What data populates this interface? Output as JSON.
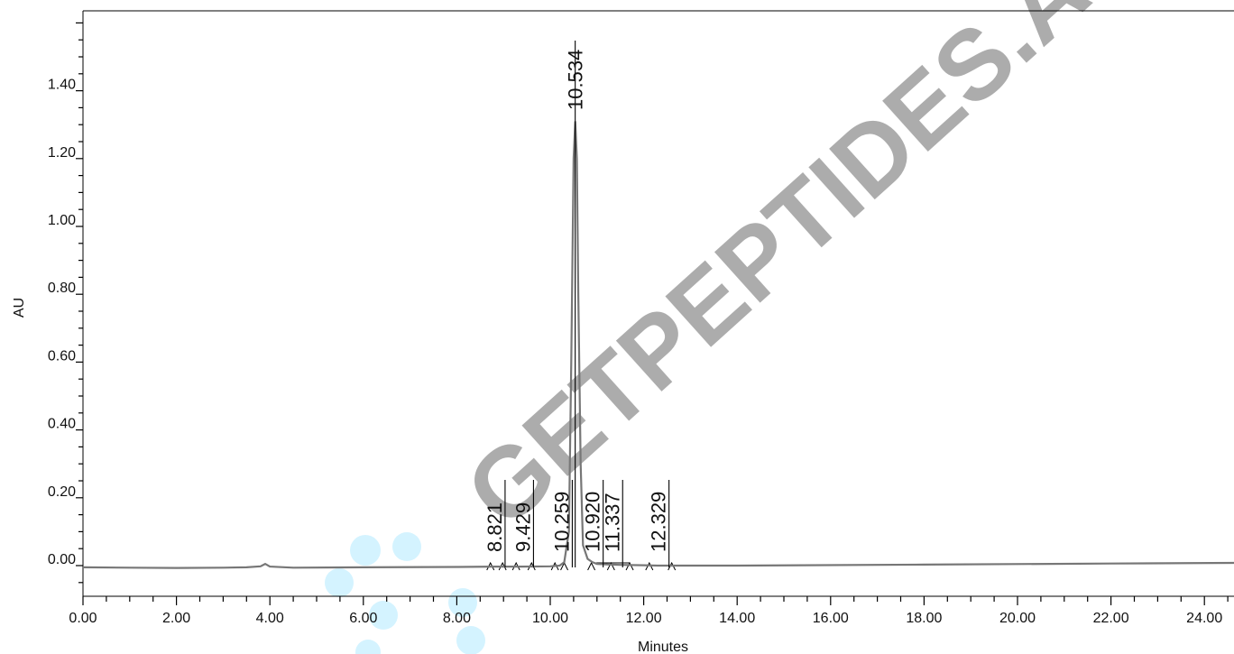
{
  "chart_data": {
    "type": "line",
    "xlabel": "Minutes",
    "ylabel": "AU",
    "xlim": [
      0,
      25.5
    ],
    "ylim": [
      -0.09,
      1.64
    ],
    "x_ticks": [
      "0.00",
      "2.00",
      "4.00",
      "6.00",
      "8.00",
      "10.00",
      "12.00",
      "14.00",
      "16.00",
      "18.00",
      "20.00",
      "22.00",
      "24.00"
    ],
    "x_tick_values": [
      0,
      2,
      4,
      6,
      8,
      10,
      12,
      14,
      16,
      18,
      20,
      22,
      24
    ],
    "y_ticks": [
      "0.00",
      "0.20",
      "0.40",
      "0.60",
      "0.80",
      "1.00",
      "1.20",
      "1.40"
    ],
    "y_tick_values": [
      0,
      0.2,
      0.4,
      0.6,
      0.8,
      1.0,
      1.2,
      1.4
    ],
    "grid": false,
    "series": [
      {
        "x": [
          0,
          1,
          2,
          3,
          3.5,
          3.8,
          3.9,
          4.0,
          4.5,
          6,
          8,
          8.8,
          9.4,
          10.0,
          10.2,
          10.3,
          10.4,
          10.45,
          10.5,
          10.534,
          10.57,
          10.6,
          10.65,
          10.7,
          10.8,
          10.9,
          11.0,
          11.3,
          11.5,
          12,
          12.3,
          12.6,
          14,
          18,
          22,
          25.5
        ],
        "y": [
          -0.005,
          -0.006,
          -0.007,
          -0.006,
          -0.005,
          -0.002,
          0.005,
          -0.003,
          -0.006,
          -0.005,
          -0.004,
          -0.003,
          -0.003,
          -0.002,
          0.0,
          0.01,
          0.1,
          0.6,
          1.2,
          1.31,
          1.2,
          0.8,
          0.3,
          0.06,
          0.02,
          0.01,
          0.005,
          0.003,
          0.002,
          0.001,
          0.0,
          0.0,
          0.0,
          0.003,
          0.006,
          0.008
        ]
      }
    ],
    "peaks": [
      {
        "rt": 8.821,
        "label": "8.821"
      },
      {
        "rt": 9.429,
        "label": "9.429"
      },
      {
        "rt": 10.259,
        "label": "10.259"
      },
      {
        "rt": 10.534,
        "label": "10.534"
      },
      {
        "rt": 10.92,
        "label": "10.920"
      },
      {
        "rt": 11.337,
        "label": "11.337"
      },
      {
        "rt": 12.329,
        "label": "12.329"
      }
    ],
    "watermark": "GETPEPTIDES.AE"
  }
}
